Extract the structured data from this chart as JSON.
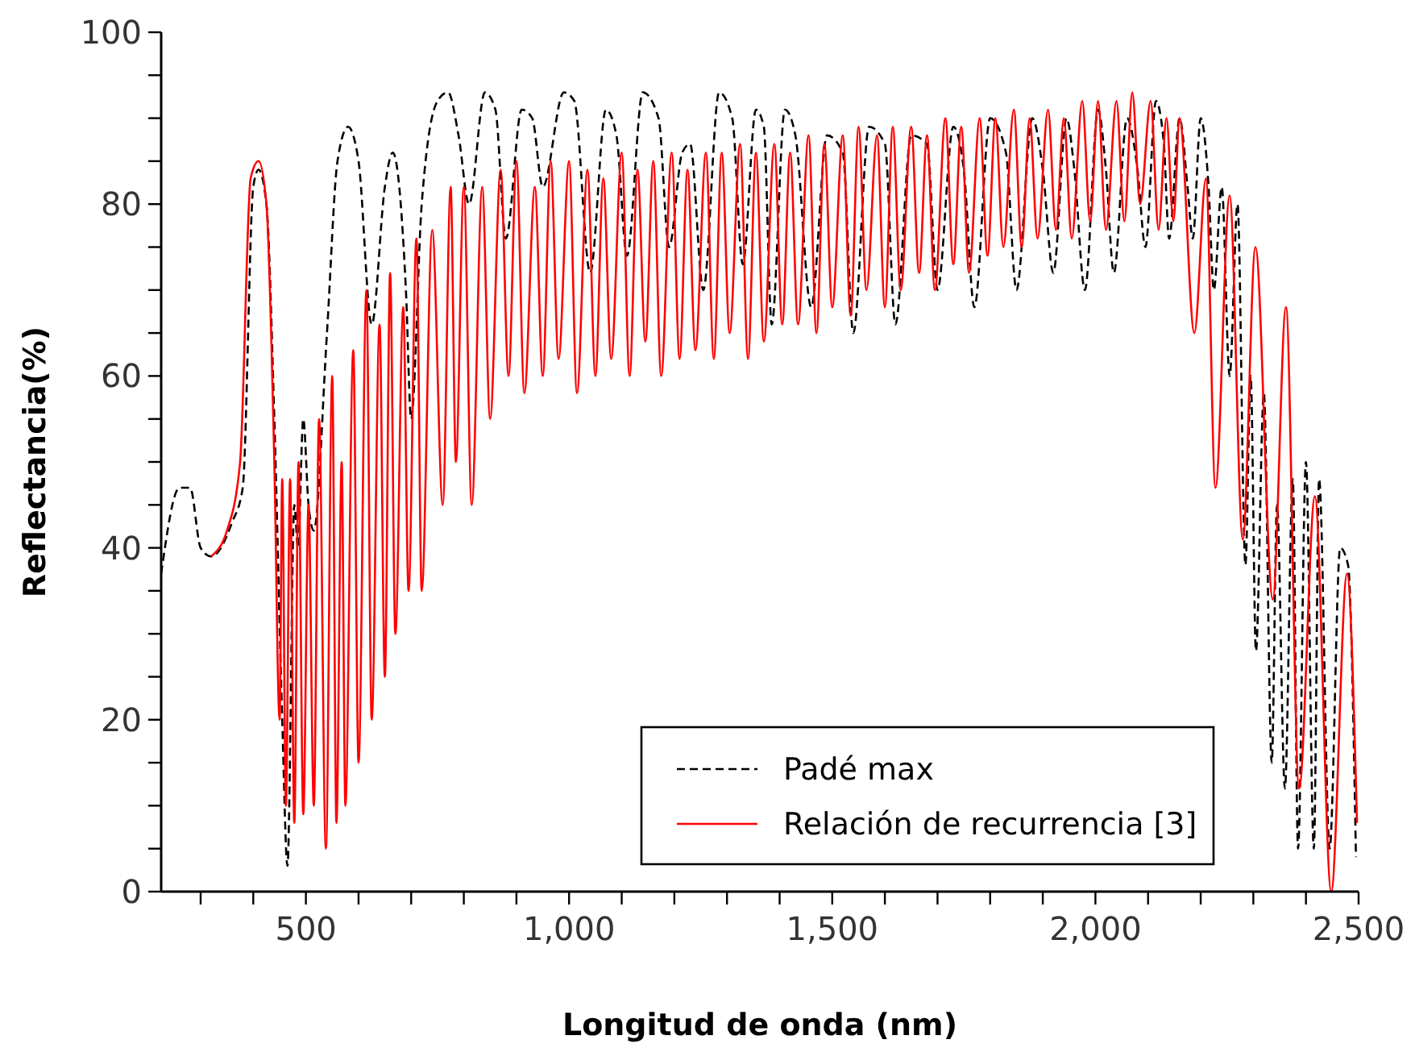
{
  "chart_data": {
    "type": "line",
    "xlabel": "Longitud de onda (nm)",
    "ylabel": "Reflectancia(%)",
    "xlim": [
      225,
      2500
    ],
    "xticks": [
      {
        "value": 300,
        "label": null
      },
      {
        "value": 400,
        "label": null
      },
      500,
      {
        "value": 600,
        "label": null
      },
      {
        "value": 700,
        "label": null
      },
      {
        "value": 800,
        "label": null
      },
      {
        "value": 900,
        "label": null
      },
      {
        "value": 1000,
        "label": "1,000"
      },
      {
        "value": 1100,
        "label": null
      },
      {
        "value": 1200,
        "label": null
      },
      {
        "value": 1300,
        "label": null
      },
      {
        "value": 1400,
        "label": null
      },
      {
        "value": 1500,
        "label": "1,500"
      },
      {
        "value": 1600,
        "label": null
      },
      {
        "value": 1700,
        "label": null
      },
      {
        "value": 1800,
        "label": null
      },
      {
        "value": 1900,
        "label": null
      },
      {
        "value": 2000,
        "label": "2,000"
      },
      {
        "value": 2100,
        "label": null
      },
      {
        "value": 2200,
        "label": null
      },
      {
        "value": 2300,
        "label": null
      },
      {
        "value": 2400,
        "label": null
      },
      {
        "value": 2500,
        "label": "2,500"
      }
    ],
    "ylim": [
      0,
      100
    ],
    "yticks": [
      0,
      {
        "value": 5,
        "label": null
      },
      {
        "value": 10,
        "label": null
      },
      {
        "value": 15,
        "label": null
      },
      20,
      {
        "value": 25,
        "label": null
      },
      {
        "value": 30,
        "label": null
      },
      {
        "value": 35,
        "label": null
      },
      40,
      {
        "value": 45,
        "label": null
      },
      {
        "value": 50,
        "label": null
      },
      {
        "value": 55,
        "label": null
      },
      60,
      {
        "value": 65,
        "label": null
      },
      {
        "value": 70,
        "label": null
      },
      {
        "value": 75,
        "label": null
      },
      80,
      {
        "value": 85,
        "label": null
      },
      {
        "value": 90,
        "label": null
      },
      {
        "value": 95,
        "label": null
      },
      100
    ],
    "grid": false,
    "legend": "bottom right",
    "marker": "none",
    "series": [
      {
        "name": "Padé max",
        "color": "#000000",
        "line_style": "dashed",
        "x": [
          225,
          260,
          280,
          300,
          320,
          360,
          380,
          400,
          410,
          425,
          440,
          455,
          465,
          478,
          485,
          495,
          505,
          515,
          540,
          560,
          580,
          600,
          625,
          650,
          665,
          690,
          700,
          720,
          750,
          770,
          790,
          810,
          840,
          860,
          880,
          910,
          930,
          950,
          990,
          1010,
          1040,
          1070,
          1090,
          1110,
          1140,
          1170,
          1190,
          1215,
          1230,
          1255,
          1285,
          1310,
          1330,
          1355,
          1370,
          1385,
          1410,
          1430,
          1460,
          1490,
          1520,
          1540,
          1570,
          1600,
          1620,
          1650,
          1680,
          1700,
          1730,
          1750,
          1770,
          1800,
          1830,
          1850,
          1880,
          1900,
          1920,
          1945,
          1960,
          1980,
          2005,
          2020,
          2035,
          2060,
          2080,
          2095,
          2115,
          2130,
          2140,
          2160,
          2175,
          2185,
          2200,
          2215,
          2225,
          2240,
          2255,
          2270,
          2285,
          2295,
          2305,
          2320,
          2335,
          2345,
          2360,
          2375,
          2385,
          2400,
          2415,
          2425,
          2445,
          2465,
          2480,
          2495
        ],
        "values": [
          37,
          47,
          47,
          40,
          39,
          43,
          47,
          82,
          84,
          80,
          55,
          20,
          3,
          45,
          40,
          55,
          45,
          42,
          65,
          85,
          89,
          85,
          66,
          82,
          86,
          70,
          55,
          80,
          92,
          93,
          88,
          80,
          93,
          91,
          76,
          91,
          90,
          82,
          93,
          92,
          72,
          91,
          88,
          74,
          93,
          90,
          75,
          86,
          87,
          70,
          93,
          90,
          73,
          91,
          89,
          66,
          91,
          88,
          68,
          88,
          86,
          65,
          89,
          87,
          66,
          88,
          87,
          70,
          89,
          84,
          68,
          90,
          86,
          70,
          90,
          84,
          72,
          90,
          84,
          70,
          91,
          84,
          72,
          90,
          84,
          75,
          92,
          87,
          76,
          90,
          82,
          76,
          90,
          82,
          70,
          82,
          60,
          80,
          38,
          60,
          28,
          58,
          15,
          45,
          12,
          48,
          5,
          50,
          5,
          48,
          5,
          40,
          38,
          4
        ]
      },
      {
        "name": "Relación de recurrencia [3]",
        "color": "#ff0000",
        "line_style": "solid",
        "x": [
          320,
          350,
          375,
          395,
          410,
          425,
          440,
          450,
          455,
          462,
          470,
          478,
          486,
          495,
          505,
          515,
          525,
          538,
          550,
          558,
          568,
          575,
          590,
          600,
          615,
          625,
          640,
          650,
          660,
          670,
          685,
          695,
          710,
          720,
          740,
          760,
          775,
          785,
          800,
          815,
          835,
          850,
          870,
          885,
          900,
          915,
          935,
          950,
          965,
          980,
          1000,
          1015,
          1035,
          1050,
          1065,
          1080,
          1100,
          1115,
          1130,
          1145,
          1160,
          1175,
          1195,
          1210,
          1225,
          1240,
          1260,
          1275,
          1290,
          1305,
          1325,
          1340,
          1355,
          1370,
          1390,
          1405,
          1420,
          1435,
          1455,
          1470,
          1485,
          1500,
          1520,
          1535,
          1550,
          1565,
          1585,
          1600,
          1615,
          1630,
          1650,
          1665,
          1680,
          1695,
          1715,
          1730,
          1745,
          1760,
          1780,
          1795,
          1810,
          1825,
          1845,
          1860,
          1875,
          1890,
          1910,
          1925,
          1940,
          1955,
          1975,
          1990,
          2005,
          2020,
          2040,
          2055,
          2070,
          2085,
          2105,
          2120,
          2135,
          2148,
          2160,
          2188,
          2210,
          2228,
          2255,
          2280,
          2304,
          2337,
          2362,
          2387,
          2417,
          2448,
          2478,
          2497
        ],
        "values": [
          39,
          42,
          50,
          83,
          85,
          80,
          50,
          20,
          48,
          10,
          48,
          8,
          50,
          9,
          45,
          10,
          55,
          5,
          60,
          8,
          50,
          10,
          63,
          15,
          70,
          20,
          66,
          25,
          72,
          30,
          68,
          35,
          76,
          35,
          77,
          45,
          82,
          50,
          82,
          45,
          82,
          55,
          84,
          60,
          85,
          58,
          82,
          60,
          85,
          62,
          85,
          58,
          84,
          60,
          83,
          62,
          86,
          60,
          84,
          64,
          85,
          60,
          86,
          62,
          84,
          63,
          86,
          62,
          86,
          65,
          87,
          62,
          86,
          64,
          87,
          66,
          86,
          66,
          88,
          65,
          87,
          68,
          88,
          67,
          89,
          70,
          88,
          68,
          89,
          70,
          89,
          72,
          88,
          70,
          90,
          73,
          89,
          72,
          90,
          74,
          90,
          75,
          91,
          75,
          90,
          76,
          91,
          77,
          90,
          76,
          92,
          78,
          92,
          77,
          92,
          78,
          93,
          80,
          92,
          77,
          90,
          78,
          90,
          65,
          83,
          47,
          81,
          41,
          75,
          34,
          68,
          12,
          46,
          0,
          37,
          8
        ]
      }
    ]
  }
}
